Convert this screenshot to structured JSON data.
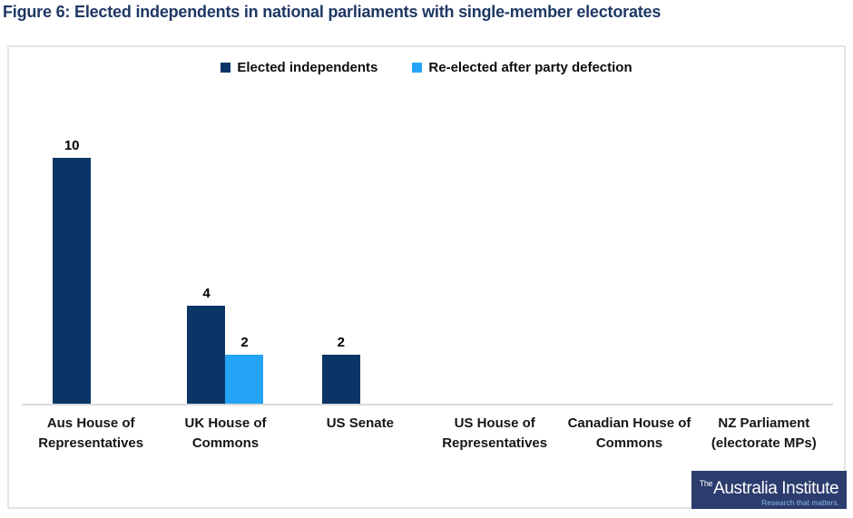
{
  "title": "Figure 6: Elected independents in national parliaments with single-member electorates",
  "legend": [
    {
      "label": "Elected independents",
      "color": "#0b3567"
    },
    {
      "label": "Re-elected after party defection",
      "color": "#23a4f4"
    }
  ],
  "chart_data": {
    "type": "bar",
    "title": "Figure 6: Elected independents in national parliaments with single-member electorates",
    "categories": [
      "Aus House of Representatives",
      "UK House of Commons",
      "US Senate",
      "US House of Representatives",
      "Canadian House of Commons",
      "NZ Parliament (electorate MPs)"
    ],
    "series": [
      {
        "name": "Elected independents",
        "color": "#0b3567",
        "values": [
          10,
          4,
          2,
          0,
          0,
          0
        ]
      },
      {
        "name": "Re-elected after party defection",
        "color": "#23a4f4",
        "values": [
          0,
          2,
          0,
          0,
          0,
          0
        ]
      }
    ],
    "xlabel": "",
    "ylabel": "",
    "ylim": [
      0,
      11
    ],
    "grid": false,
    "y_axis_visible": false,
    "legend_position": "top-center",
    "data_labels": true
  },
  "logo": {
    "the": "The",
    "name": "Australia Institute",
    "tagline": "Research that matters.",
    "bg_color": "#2b3c6d"
  }
}
